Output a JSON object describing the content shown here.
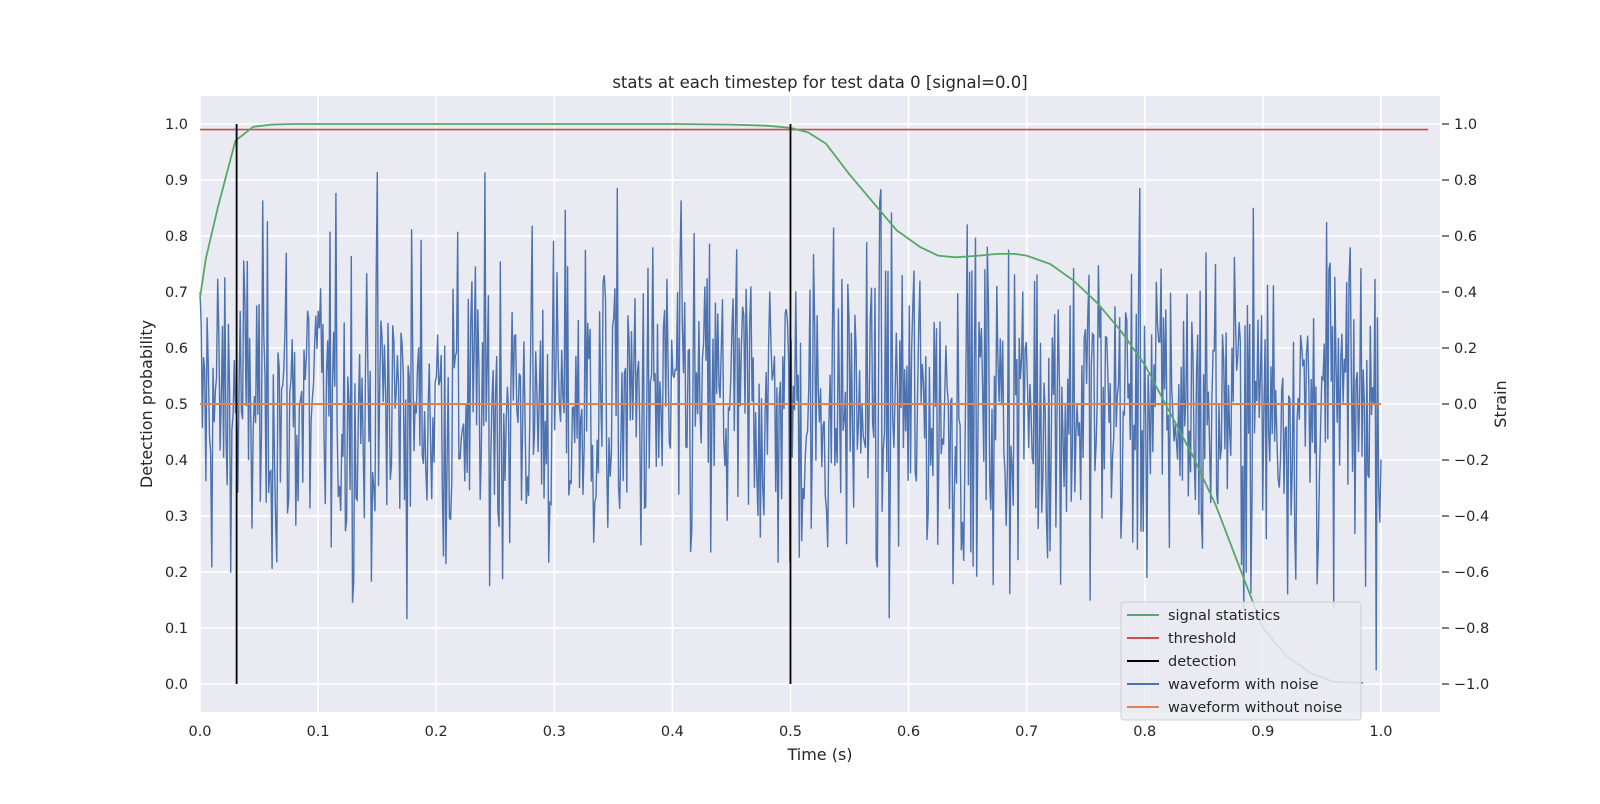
{
  "chart_data": {
    "type": "line",
    "title": "stats at each timestep for test data 0 [signal=0.0]",
    "xlabel": "Time (s)",
    "ylabel": "Detection probability",
    "y2label": "Strain",
    "xlim": [
      0.0,
      1.05
    ],
    "ylim": [
      -0.05,
      1.05
    ],
    "y2lim": [
      -1.1,
      1.1
    ],
    "grid": true,
    "legend_position": "lower-right",
    "x_ticks": [
      "0.0",
      "0.1",
      "0.2",
      "0.3",
      "0.4",
      "0.5",
      "0.6",
      "0.7",
      "0.8",
      "0.9",
      "1.0"
    ],
    "y_ticks": [
      "0.0",
      "0.1",
      "0.2",
      "0.3",
      "0.4",
      "0.5",
      "0.6",
      "0.7",
      "0.8",
      "0.9",
      "1.0"
    ],
    "y2_ticks": [
      "−1.0",
      "−0.8",
      "−0.6",
      "−0.4",
      "−0.2",
      "0.0",
      "0.2",
      "0.4",
      "0.6",
      "0.8",
      "1.0"
    ],
    "series": [
      {
        "name": "signal statistics",
        "axis": "left",
        "color": "#55a868",
        "x": [
          0.0,
          0.005,
          0.015,
          0.03,
          0.045,
          0.06,
          0.08,
          0.1,
          0.2,
          0.3,
          0.4,
          0.45,
          0.48,
          0.5,
          0.515,
          0.53,
          0.55,
          0.57,
          0.59,
          0.61,
          0.625,
          0.64,
          0.66,
          0.675,
          0.69,
          0.7,
          0.72,
          0.74,
          0.76,
          0.78,
          0.8,
          0.82,
          0.84,
          0.86,
          0.88,
          0.9,
          0.92,
          0.94,
          0.96,
          0.985
        ],
        "y": [
          0.69,
          0.76,
          0.85,
          0.97,
          0.995,
          0.999,
          1.0,
          1.0,
          1.0,
          1.0,
          1.0,
          0.999,
          0.997,
          0.993,
          0.985,
          0.965,
          0.91,
          0.86,
          0.81,
          0.78,
          0.765,
          0.762,
          0.765,
          0.768,
          0.768,
          0.765,
          0.75,
          0.72,
          0.68,
          0.63,
          0.57,
          0.49,
          0.41,
          0.32,
          0.21,
          0.1,
          0.05,
          0.02,
          0.004,
          0.002
        ]
      },
      {
        "name": "threshold",
        "axis": "left",
        "color": "#c44e52",
        "x": [
          0.0,
          1.04
        ],
        "y": [
          0.99,
          0.99
        ]
      },
      {
        "name": "detection",
        "axis": "left",
        "color": "#000000",
        "x": [
          0.031,
          0.5
        ],
        "y_range": [
          0.0,
          1.0
        ]
      },
      {
        "name": "waveform with noise",
        "axis": "right",
        "color": "#4c72b0",
        "n_points": 1000,
        "x_range": [
          0.0,
          1.0
        ],
        "y_range": [
          -1.0,
          1.0
        ]
      },
      {
        "name": "waveform without noise",
        "axis": "right",
        "color": "#dd8452",
        "x": [
          0.0,
          1.0
        ],
        "y": [
          0.0,
          0.0
        ]
      }
    ]
  }
}
